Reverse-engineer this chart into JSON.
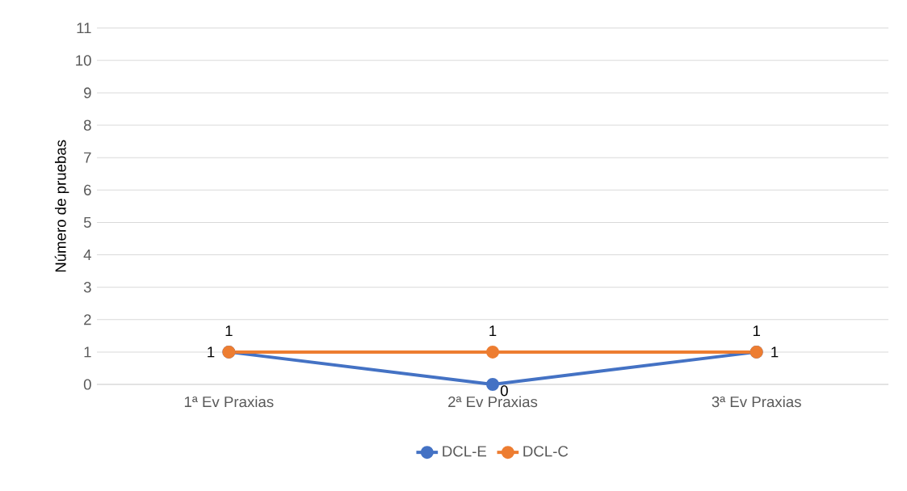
{
  "chart_data": {
    "type": "line",
    "ylabel": "Número de pruebas",
    "categories": [
      "1ª Ev Praxias",
      "2ª Ev Praxias",
      "3ª Ev Praxias"
    ],
    "series": [
      {
        "name": "DCL-E",
        "color": "#4472c4",
        "values": [
          1,
          0,
          1
        ]
      },
      {
        "name": "DCL-C",
        "color": "#ed7d31",
        "values": [
          1,
          1,
          1
        ]
      }
    ],
    "ylim": [
      0,
      11
    ],
    "yticks": [
      0,
      1,
      2,
      3,
      4,
      5,
      6,
      7,
      8,
      9,
      10,
      11
    ],
    "grid": "y",
    "legend": "bottom",
    "marker": "circle",
    "line_style": "solid",
    "data_labels": true
  }
}
